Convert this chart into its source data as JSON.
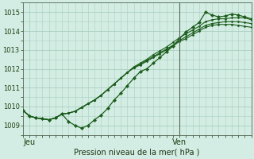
{
  "xlabel": "Pression niveau de la mer( hPa )",
  "bg_color": "#d4ede4",
  "grid_color": "#aacfbf",
  "line_color": "#1a5c1a",
  "marker_color": "#1a5c1a",
  "ylim": [
    1008.7,
    1015.4
  ],
  "yticks": [
    1009,
    1010,
    1011,
    1012,
    1013,
    1014,
    1015
  ],
  "xlim": [
    0,
    35
  ],
  "xtick_labels": [
    "Jeu",
    "Ven"
  ],
  "xtick_positions": [
    1,
    24
  ],
  "vline_x": 24,
  "n_minor_x": 35,
  "series": [
    [
      1009.8,
      1009.5,
      1009.4,
      1009.35,
      1009.3,
      1009.4,
      1009.6,
      1009.2,
      1009.0,
      1008.85,
      1009.0,
      1009.3,
      1009.55,
      1009.9,
      1010.35,
      1010.7,
      1011.1,
      1011.5,
      1011.85,
      1012.0,
      1012.3,
      1012.6,
      1012.9,
      1013.2,
      1013.6,
      1013.95,
      1014.2,
      1014.45,
      1015.0,
      1014.85,
      1014.75,
      1014.8,
      1014.9,
      1014.85,
      1014.75,
      1014.65
    ],
    [
      1009.8,
      1009.5,
      1009.4,
      1009.35,
      1009.3,
      1009.4,
      1009.6,
      1009.65,
      1009.75,
      1009.95,
      1010.15,
      1010.35,
      1010.6,
      1010.9,
      1011.2,
      1011.5,
      1011.8,
      1012.1,
      1012.3,
      1012.5,
      1012.75,
      1012.95,
      1013.15,
      1013.4,
      1013.65,
      1013.85,
      1014.05,
      1014.25,
      1014.5,
      1014.6,
      1014.65,
      1014.65,
      1014.7,
      1014.7,
      1014.7,
      1014.6
    ],
    [
      1009.8,
      1009.5,
      1009.4,
      1009.35,
      1009.3,
      1009.4,
      1009.6,
      1009.65,
      1009.75,
      1009.95,
      1010.15,
      1010.35,
      1010.6,
      1010.9,
      1011.2,
      1011.5,
      1011.8,
      1012.05,
      1012.25,
      1012.45,
      1012.65,
      1012.85,
      1013.05,
      1013.25,
      1013.5,
      1013.7,
      1013.9,
      1014.1,
      1014.3,
      1014.4,
      1014.45,
      1014.5,
      1014.5,
      1014.5,
      1014.45,
      1014.4
    ],
    [
      1009.8,
      1009.5,
      1009.4,
      1009.35,
      1009.3,
      1009.4,
      1009.6,
      1009.65,
      1009.75,
      1009.95,
      1010.15,
      1010.35,
      1010.6,
      1010.9,
      1011.2,
      1011.5,
      1011.8,
      1012.05,
      1012.2,
      1012.4,
      1012.6,
      1012.8,
      1013.0,
      1013.2,
      1013.45,
      1013.6,
      1013.8,
      1014.0,
      1014.2,
      1014.3,
      1014.35,
      1014.35,
      1014.35,
      1014.3,
      1014.25,
      1014.2
    ]
  ]
}
